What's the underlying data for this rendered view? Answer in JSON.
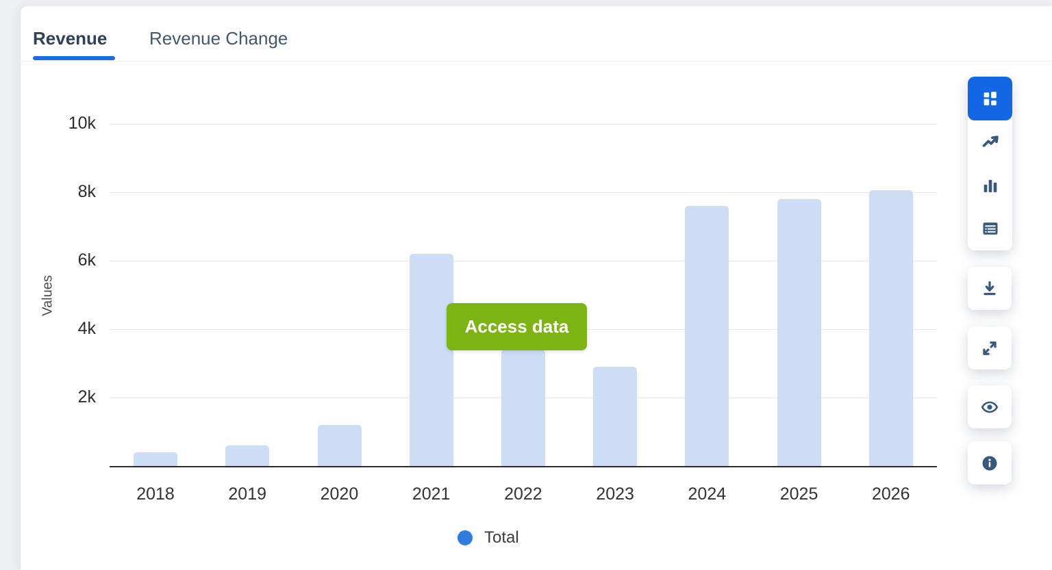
{
  "tabs": [
    {
      "label": "Revenue",
      "active": true
    },
    {
      "label": "Revenue Change",
      "active": false
    }
  ],
  "overlay": {
    "button_label": "Access data"
  },
  "chart_data": {
    "type": "bar",
    "categories": [
      "2018",
      "2019",
      "2020",
      "2021",
      "2022",
      "2023",
      "2024",
      "2025",
      "2026"
    ],
    "values": [
      400,
      600,
      1200,
      6200,
      3400,
      2900,
      7600,
      7800,
      8050
    ],
    "series_name": "Total",
    "title": "",
    "xlabel": "",
    "ylabel": "Values",
    "ylim": [
      0,
      10000
    ],
    "yticks": [
      {
        "value": 2000,
        "label": "2k"
      },
      {
        "value": 4000,
        "label": "4k"
      },
      {
        "value": 6000,
        "label": "6k"
      },
      {
        "value": 8000,
        "label": "8k"
      },
      {
        "value": 10000,
        "label": "10k"
      }
    ],
    "grid": "horizontal",
    "legend_position": "bottom",
    "legend": [
      {
        "label": "Total",
        "color": "#2e7ce2"
      }
    ]
  },
  "toolbar": {
    "chart_type_group": [
      {
        "icon": "grid-icon",
        "active": true
      },
      {
        "icon": "line-chart-icon",
        "active": false
      },
      {
        "icon": "bar-chart-icon",
        "active": false
      },
      {
        "icon": "table-icon",
        "active": false
      }
    ],
    "actions": [
      {
        "icon": "download-icon"
      },
      {
        "icon": "expand-icon"
      },
      {
        "icon": "eye-icon"
      },
      {
        "icon": "info-icon"
      }
    ]
  },
  "colors": {
    "accent_blue": "#1a6ce0",
    "active_tile_blue": "#1467e2",
    "bar_fill": "#cdddf5",
    "access_green": "#7cb413",
    "icon_slate": "#39587d",
    "legend_dot": "#2e7ce2",
    "gridline": "#e8e8e8",
    "axis_line": "#2b2b2b",
    "page_background": "#eef0f3"
  }
}
